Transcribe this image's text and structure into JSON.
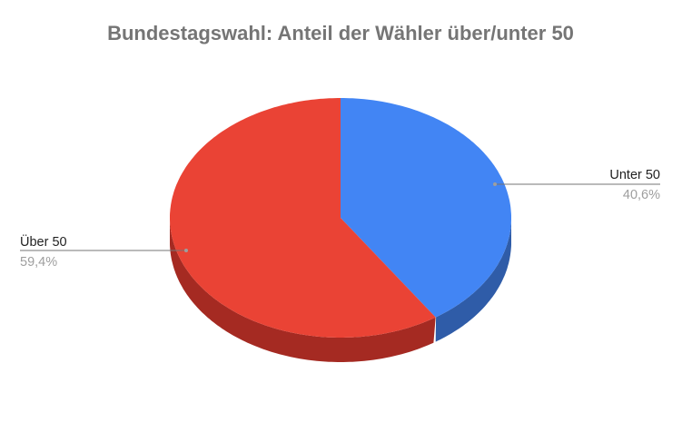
{
  "chart_data": {
    "type": "pie",
    "style": "3d",
    "title": "Bundestagswahl: Anteil der Wähler über/unter 50",
    "slices": [
      {
        "label": "Unter 50",
        "value": 40.6,
        "display": "40,6%",
        "color": "#4285f4",
        "side_color": "#2f5ca8"
      },
      {
        "label": "Über 50",
        "value": 59.4,
        "display": "59,4%",
        "color": "#ea4335",
        "side_color": "#a52a22"
      }
    ],
    "legend": "labels with leader lines"
  }
}
